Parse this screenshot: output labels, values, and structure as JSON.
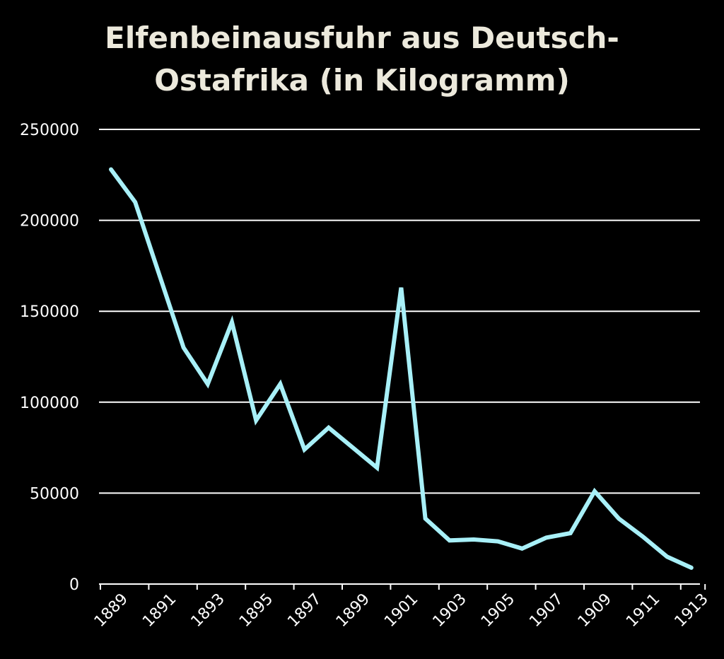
{
  "chart_data": {
    "type": "line",
    "title_lines": [
      "Elfenbeinausfuhr aus Deutsch-",
      "Ostafrika (in Kilogramm)"
    ],
    "xlabel": "",
    "ylabel": "",
    "ylim": [
      0,
      250000
    ],
    "yticks": [
      0,
      50000,
      100000,
      150000,
      200000,
      250000
    ],
    "ytick_labels": [
      "0",
      "50000",
      "100000",
      "150000",
      "200000",
      "250000"
    ],
    "xlim": [
      1889,
      1913
    ],
    "xtick_labels": [
      "1889",
      "1891",
      "1893",
      "1895",
      "1897",
      "1899",
      "1901",
      "1903",
      "1905",
      "1907",
      "1909",
      "1911",
      "1913"
    ],
    "grid": "horizontal",
    "line_color": "#a8f0f8",
    "grid_color": "#ffffff",
    "title_color": "#ece9dc",
    "background": "#000000",
    "series": [
      {
        "x": [
          1889,
          1890,
          1891,
          1892,
          1893,
          1894,
          1895,
          1896,
          1897,
          1898,
          1899,
          1900,
          1901,
          1902,
          1903,
          1904,
          1905,
          1906,
          1907,
          1908,
          1909,
          1910,
          1911,
          1912,
          1913
        ],
        "values": [
          228000,
          210000,
          170000,
          130000,
          110000,
          144000,
          90000,
          110000,
          74000,
          86000,
          75000,
          64000,
          163000,
          36000,
          24000,
          24500,
          23500,
          19500,
          25500,
          28000,
          51000,
          36000,
          26000,
          15000,
          9000
        ]
      }
    ]
  }
}
